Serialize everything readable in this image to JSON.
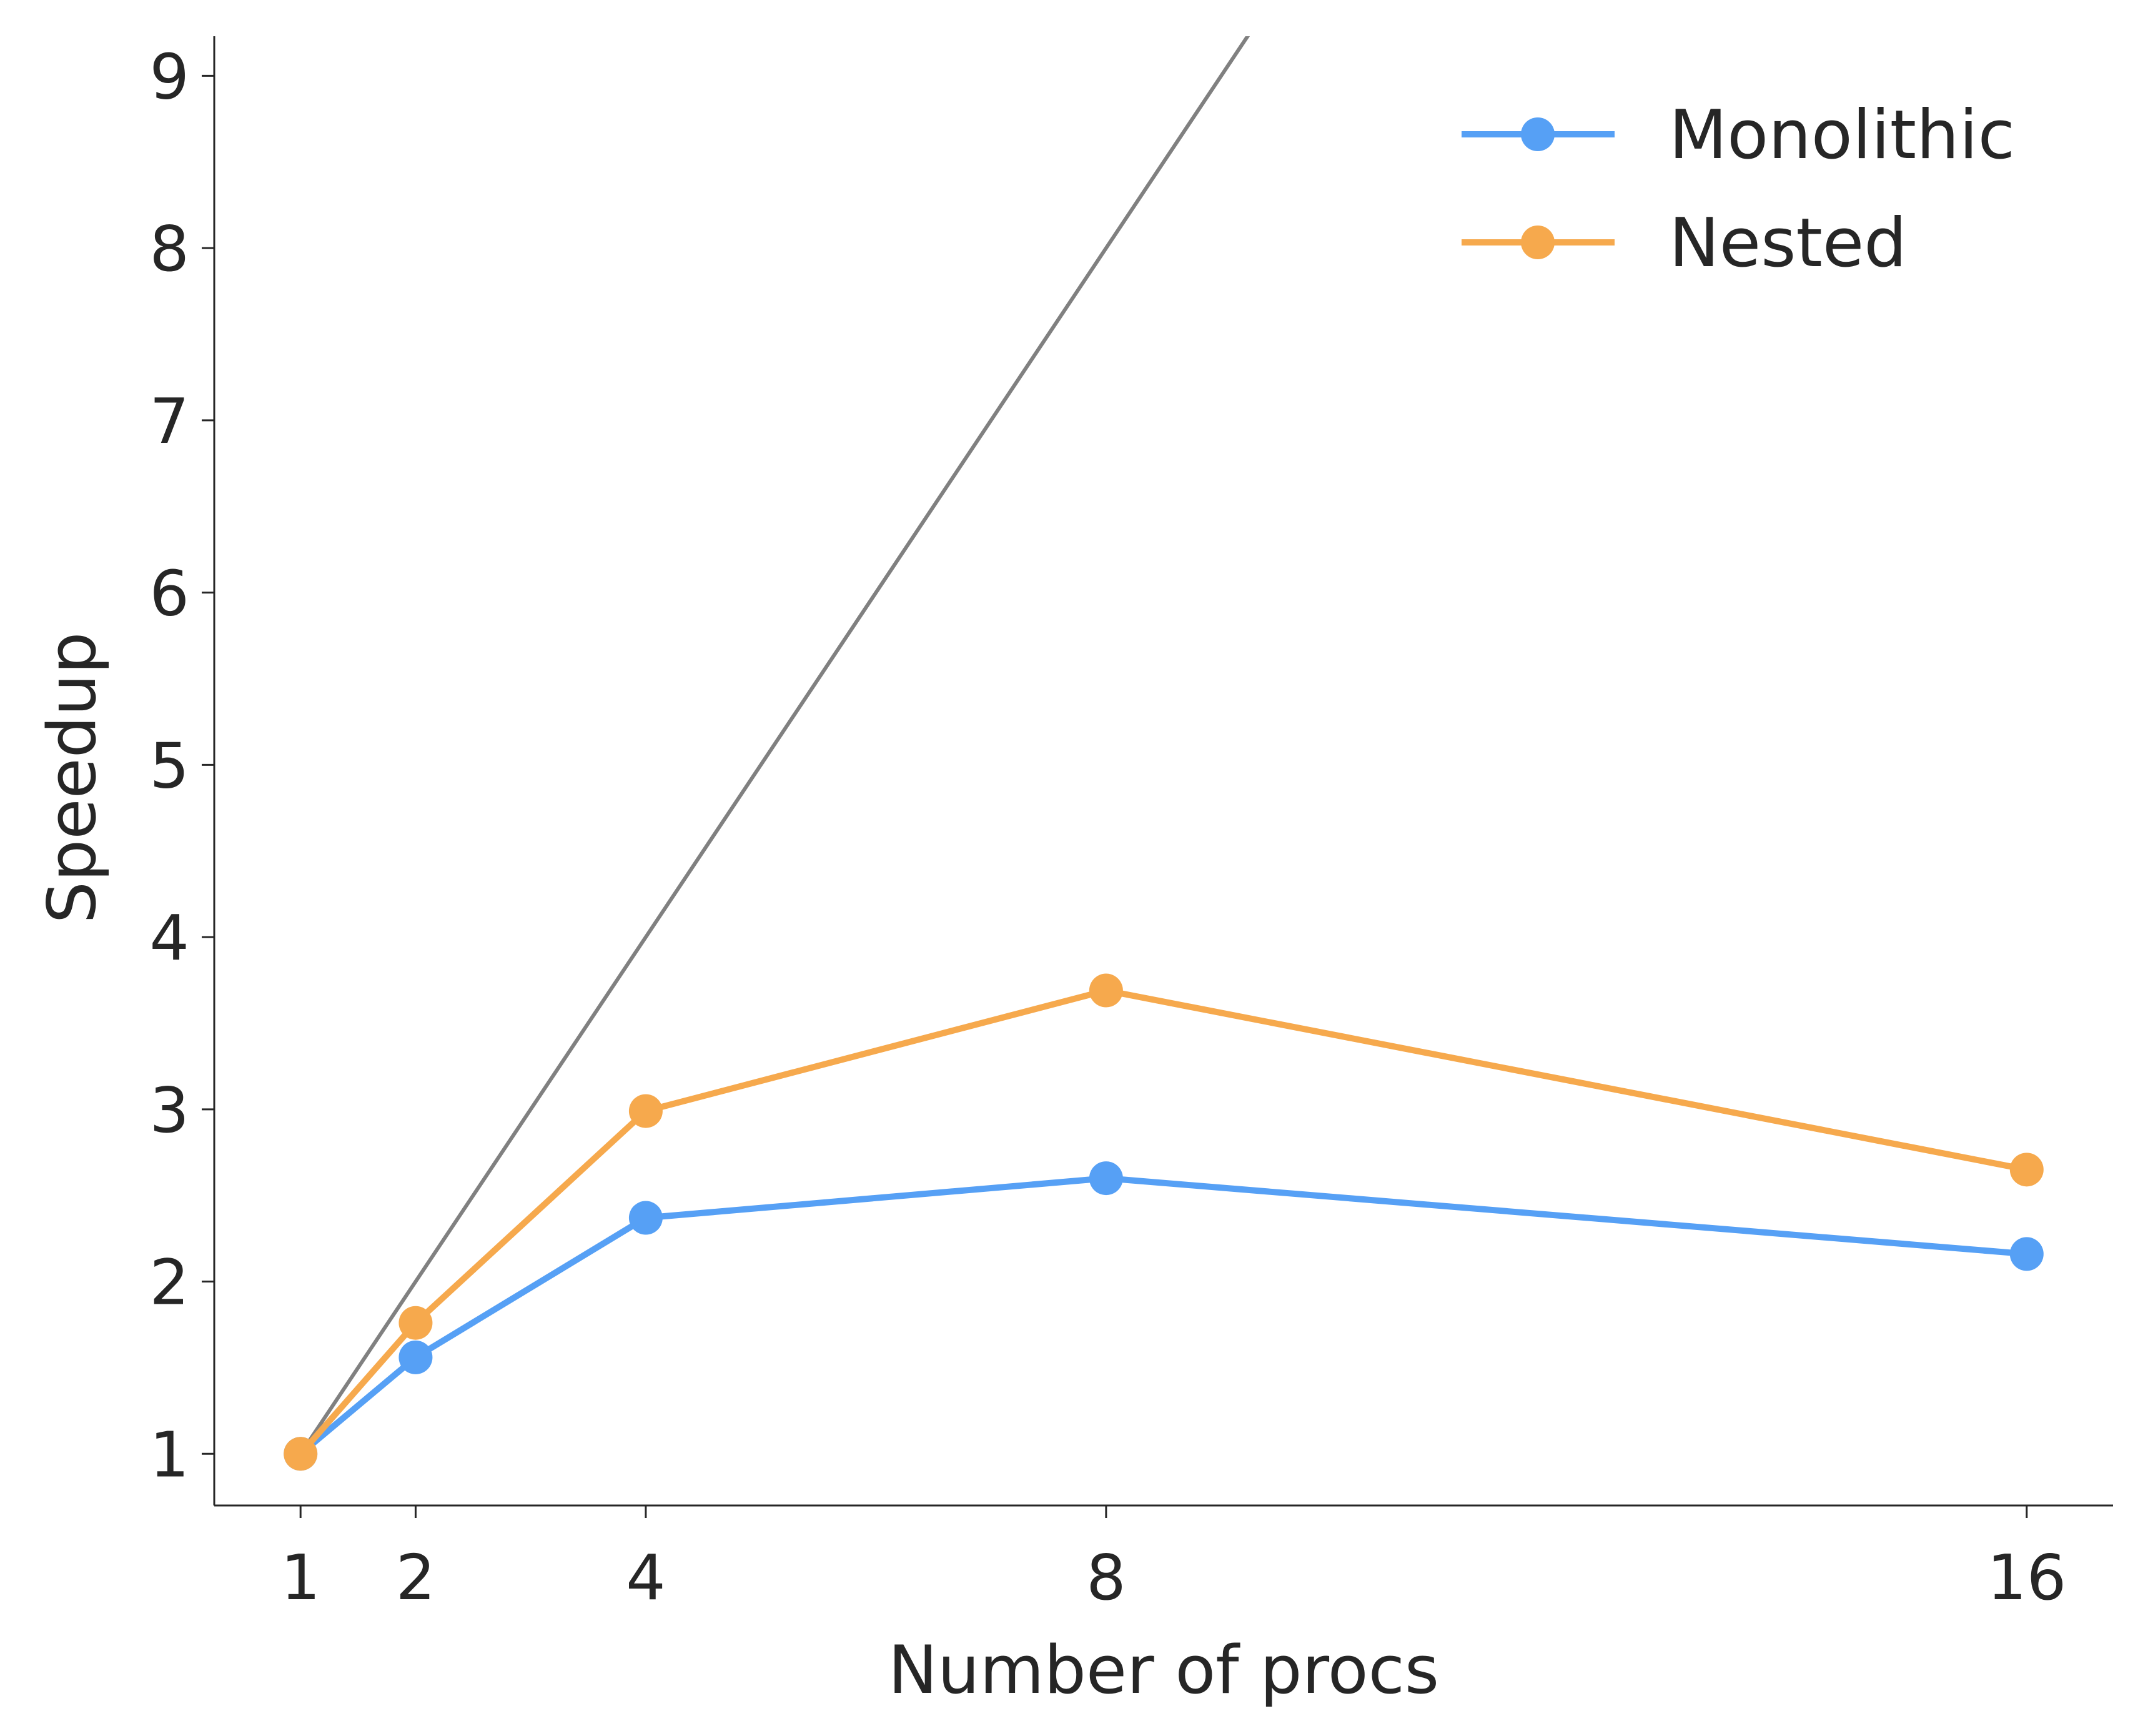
{
  "chart_data": {
    "type": "line",
    "xlabel": "Number of procs",
    "ylabel": "Speedup",
    "x": [
      1,
      2,
      4,
      8,
      16
    ],
    "xticks": [
      "1",
      "2",
      "4",
      "8",
      "16"
    ],
    "yticks": [
      "1",
      "2",
      "3",
      "4",
      "5",
      "6",
      "7",
      "8",
      "9"
    ],
    "xlim": [
      0.25,
      16.75
    ],
    "ylim": [
      0.7,
      9.23
    ],
    "grid": false,
    "legend_position": "top-right",
    "reference_line": {
      "x": [
        1,
        16
      ],
      "y": [
        1,
        16
      ],
      "color": "#808080"
    },
    "series": [
      {
        "name": "Monolithic",
        "color": "#56A0F5",
        "values": [
          1.0,
          1.56,
          2.37,
          2.6,
          2.16
        ]
      },
      {
        "name": "Nested",
        "color": "#F6A94D",
        "values": [
          1.0,
          1.76,
          2.99,
          3.69,
          2.65
        ]
      }
    ]
  }
}
